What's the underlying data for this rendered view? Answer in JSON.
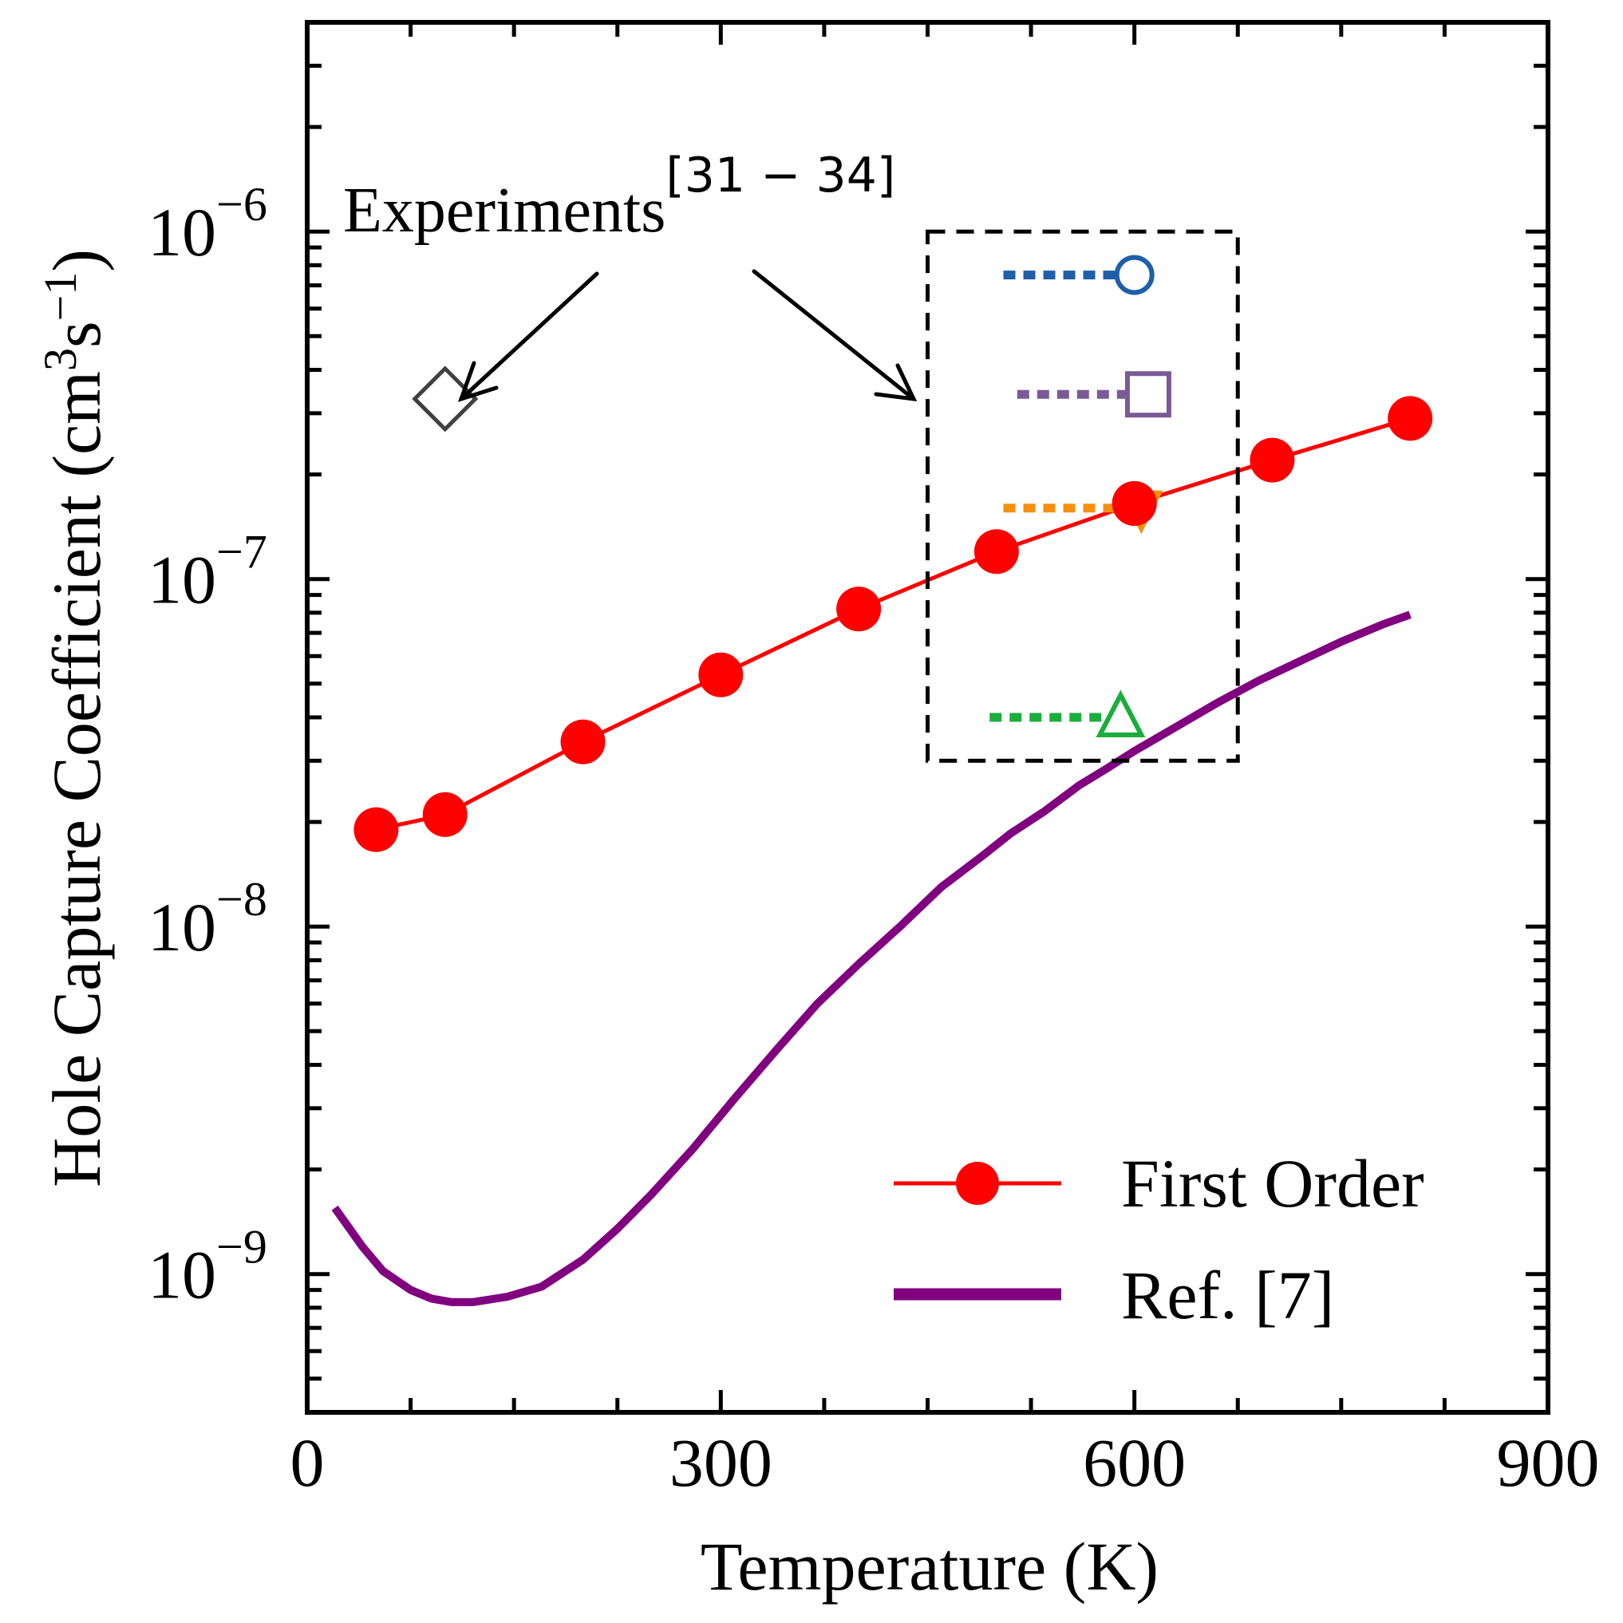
{
  "chart_data": {
    "type": "line",
    "title": "",
    "xlabel": "Temperature (K)",
    "ylabel_main": "Hole Capture Coefficient (cm",
    "ylabel_sup1": "3",
    "ylabel_mid": "s",
    "ylabel_sup2": "−1",
    "ylabel_end": ")",
    "xlim": [
      0,
      900
    ],
    "ylim": [
      4e-10,
      4e-06
    ],
    "yscale": "log",
    "x_ticks": [
      {
        "value": 0,
        "label": "0"
      },
      {
        "value": 300,
        "label": "300"
      },
      {
        "value": 600,
        "label": "600"
      },
      {
        "value": 900,
        "label": "900"
      }
    ],
    "y_ticks": [
      {
        "exp": -9,
        "base": "10",
        "power": "−9"
      },
      {
        "exp": -8,
        "base": "10",
        "power": "−8"
      },
      {
        "exp": -7,
        "base": "10",
        "power": "−7"
      },
      {
        "exp": -6,
        "base": "10",
        "power": "−6"
      }
    ],
    "legend_position": "bottom-right",
    "series": [
      {
        "name": "First Order",
        "color": "#ff0000",
        "marker": "circle",
        "x": [
          50,
          100,
          200,
          300,
          400,
          500,
          600,
          700,
          800
        ],
        "y": [
          1.9e-08,
          2.1e-08,
          3.4e-08,
          5.3e-08,
          8.2e-08,
          1.2e-07,
          1.65e-07,
          2.2e-07,
          2.9e-07
        ]
      },
      {
        "name": "Ref. [7]",
        "color": "#800080",
        "marker": "none",
        "x": [
          20,
          40,
          55,
          75,
          90,
          105,
          120,
          145,
          170,
          200,
          225,
          250,
          280,
          310,
          340,
          370,
          400,
          430,
          460,
          490,
          510,
          535,
          560,
          580,
          600,
          630,
          660,
          690,
          720,
          750,
          780,
          800
        ],
        "y": [
          1.55e-09,
          1.2e-09,
          1.02e-09,
          9e-10,
          8.5e-10,
          8.3e-10,
          8.3e-10,
          8.6e-10,
          9.2e-10,
          1.1e-09,
          1.35e-09,
          1.7e-09,
          2.3e-09,
          3.2e-09,
          4.4e-09,
          6e-09,
          7.8e-09,
          1e-08,
          1.3e-08,
          1.6e-08,
          1.85e-08,
          2.15e-08,
          2.55e-08,
          2.85e-08,
          3.2e-08,
          3.75e-08,
          4.4e-08,
          5.1e-08,
          5.8e-08,
          6.6e-08,
          7.4e-08,
          7.9e-08
        ]
      }
    ],
    "experiments": {
      "label": "Experiments",
      "label_sup": "[31 − 34]",
      "points": [
        {
          "marker": "diamond",
          "color": "#404040",
          "x": 100,
          "y": 3.3e-07
        },
        {
          "marker": "circle-open",
          "color": "#1f5ea8",
          "x": 600,
          "y": 7.5e-07,
          "line_from": 505
        },
        {
          "marker": "square-open",
          "color": "#7a5a96",
          "x": 610,
          "y": 3.4e-07,
          "line_from": 515
        },
        {
          "marker": "triangle-down",
          "color": "#f5900f",
          "x": 605,
          "y": 1.6e-07,
          "line_from": 505
        },
        {
          "marker": "triangle-open",
          "color": "#1aad3c",
          "x": 590,
          "y": 4e-08,
          "line_from": 495
        }
      ],
      "box": {
        "x": [
          450,
          675
        ],
        "y": [
          3e-08,
          1e-06
        ]
      }
    }
  }
}
